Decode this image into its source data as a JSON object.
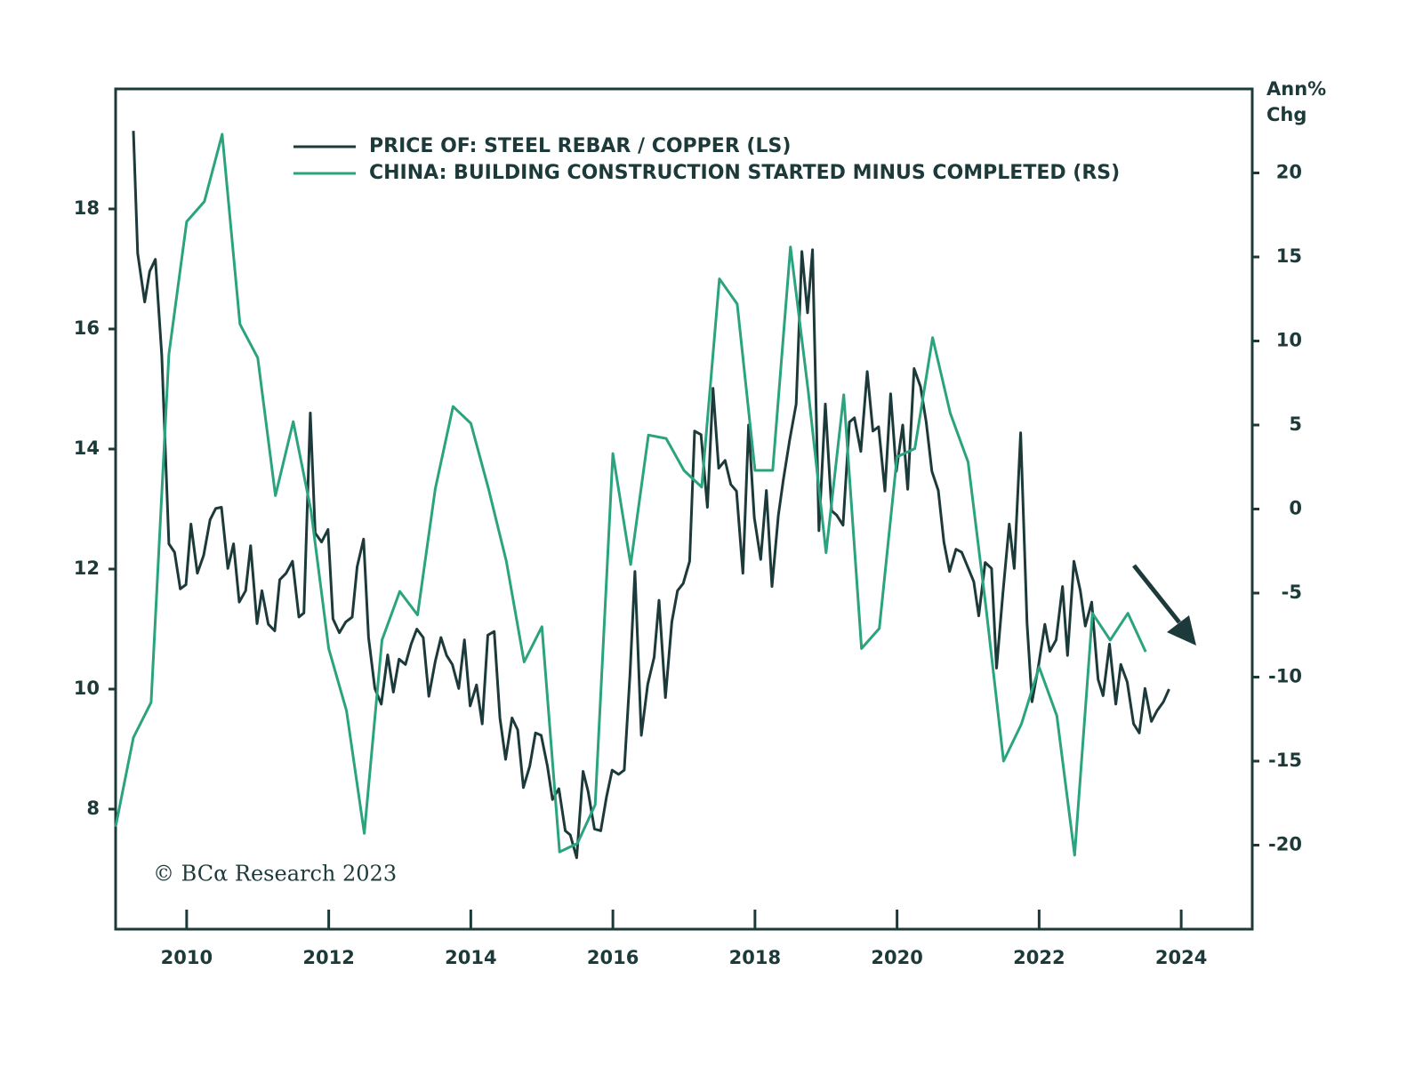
{
  "chart_data": {
    "type": "line",
    "y2_label": [
      "Ann%",
      "Chg"
    ],
    "annotation": "© BCα Research 2023",
    "xlim": [
      2009,
      2025
    ],
    "xticks": [
      2010,
      2012,
      2014,
      2016,
      2018,
      2020,
      2022,
      2024
    ],
    "ylim": [
      6,
      20
    ],
    "yticks": [
      8,
      10,
      12,
      14,
      16,
      18
    ],
    "y2lim": [
      -25,
      25
    ],
    "y2ticks": [
      -20,
      -15,
      -10,
      -5,
      0,
      5,
      10,
      15,
      20
    ],
    "legend": "upper left",
    "series": [
      {
        "name": "PRICE OF: STEEL REBAR / COPPER (LS)",
        "color": "#1d3a3a",
        "axis": "y",
        "x": [
          2009.25,
          2009.31,
          2009.41,
          2009.48,
          2009.56,
          2009.65,
          2009.75,
          2009.83,
          2009.91,
          2009.99,
          2010.06,
          2010.15,
          2010.24,
          2010.33,
          2010.41,
          2010.49,
          2010.58,
          2010.66,
          2010.74,
          2010.83,
          2010.9,
          2010.99,
          2011.06,
          2011.15,
          2011.24,
          2011.31,
          2011.4,
          2011.49,
          2011.58,
          2011.65,
          2011.74,
          2011.81,
          2011.9,
          2011.99,
          2012.06,
          2012.15,
          2012.24,
          2012.33,
          2012.4,
          2012.49,
          2012.56,
          2012.65,
          2012.74,
          2012.83,
          2012.91,
          2012.99,
          2013.08,
          2013.16,
          2013.24,
          2013.33,
          2013.41,
          2013.5,
          2013.58,
          2013.66,
          2013.74,
          2013.83,
          2013.91,
          2013.99,
          2014.08,
          2014.16,
          2014.24,
          2014.33,
          2014.41,
          2014.49,
          2014.58,
          2014.66,
          2014.74,
          2014.83,
          2014.91,
          2014.99,
          2015.08,
          2015.15,
          2015.24,
          2015.33,
          2015.4,
          2015.49,
          2015.58,
          2015.65,
          2015.74,
          2015.83,
          2015.91,
          2015.99,
          2016.08,
          2016.16,
          2016.24,
          2016.31,
          2016.4,
          2016.49,
          2016.58,
          2016.65,
          2016.74,
          2016.83,
          2016.91,
          2016.99,
          2017.08,
          2017.15,
          2017.24,
          2017.33,
          2017.41,
          2017.49,
          2017.58,
          2017.66,
          2017.74,
          2017.83,
          2017.91,
          2017.99,
          2018.08,
          2018.16,
          2018.24,
          2018.33,
          2018.4,
          2018.49,
          2018.58,
          2018.66,
          2018.74,
          2018.81,
          2018.9,
          2018.99,
          2019.08,
          2019.15,
          2019.24,
          2019.33,
          2019.4,
          2019.49,
          2019.58,
          2019.66,
          2019.74,
          2019.83,
          2019.91,
          2019.99,
          2020.08,
          2020.15,
          2020.24,
          2020.33,
          2020.41,
          2020.49,
          2020.58,
          2020.66,
          2020.74,
          2020.83,
          2020.91,
          2020.99,
          2021.08,
          2021.15,
          2021.24,
          2021.33,
          2021.4,
          2021.49,
          2021.58,
          2021.65,
          2021.74,
          2021.83,
          2021.9,
          2021.99,
          2022.08,
          2022.15,
          2022.24,
          2022.33,
          2022.4,
          2022.49,
          2022.58,
          2022.65,
          2022.74,
          2022.83,
          2022.9,
          2022.99,
          2023.08,
          2023.15,
          2023.24,
          2023.33,
          2023.41,
          2023.49,
          2023.58,
          2023.66,
          2023.75,
          2023.83
        ],
        "values": [
          19.3,
          17.26,
          16.45,
          16.96,
          17.16,
          15.56,
          12.42,
          12.28,
          11.67,
          11.74,
          12.75,
          11.93,
          12.23,
          12.82,
          13.01,
          13.03,
          12.01,
          12.42,
          11.45,
          11.64,
          12.39,
          11.09,
          11.64,
          11.08,
          10.97,
          11.82,
          11.93,
          12.13,
          11.2,
          11.27,
          14.6,
          12.6,
          12.45,
          12.66,
          11.17,
          10.94,
          11.12,
          11.2,
          12.04,
          12.5,
          10.86,
          10.01,
          9.75,
          10.57,
          9.95,
          10.5,
          10.41,
          10.75,
          11.0,
          10.86,
          9.88,
          10.46,
          10.86,
          10.56,
          10.41,
          10.01,
          10.82,
          9.72,
          10.07,
          9.42,
          10.9,
          10.96,
          9.52,
          8.83,
          9.52,
          9.32,
          8.36,
          8.72,
          9.27,
          9.23,
          8.71,
          8.16,
          8.34,
          7.64,
          7.57,
          7.19,
          8.63,
          8.3,
          7.67,
          7.64,
          8.2,
          8.65,
          8.58,
          8.65,
          10.23,
          11.96,
          9.23,
          10.08,
          10.53,
          11.48,
          9.86,
          11.12,
          11.64,
          11.76,
          12.13,
          14.3,
          14.24,
          13.03,
          15.01,
          13.68,
          13.81,
          13.41,
          13.3,
          11.93,
          14.4,
          12.86,
          12.16,
          13.31,
          11.71,
          12.9,
          13.49,
          14.16,
          14.75,
          17.29,
          16.27,
          17.32,
          12.64,
          14.75,
          12.97,
          12.9,
          12.73,
          14.45,
          14.52,
          13.96,
          15.29,
          14.3,
          14.37,
          13.3,
          14.92,
          13.63,
          14.4,
          13.33,
          15.34,
          15.04,
          14.45,
          13.63,
          13.31,
          12.45,
          11.96,
          12.33,
          12.28,
          12.05,
          11.79,
          11.22,
          12.11,
          12.01,
          10.35,
          11.59,
          12.75,
          12.01,
          14.27,
          11.09,
          9.79,
          10.38,
          11.08,
          10.63,
          10.82,
          11.71,
          10.56,
          12.13,
          11.64,
          11.05,
          11.45,
          10.16,
          9.89,
          10.75,
          9.75,
          10.41,
          10.12,
          9.42,
          9.27,
          10.01,
          9.46,
          9.64,
          9.79,
          10.0
        ]
      },
      {
        "name": "CHINA: BUILDING CONSTRUCTION STARTED MINUS COMPLETED (RS)",
        "color": "#2aa37e",
        "axis": "y2",
        "x": [
          2009.0,
          2009.25,
          2009.5,
          2009.75,
          2010.0,
          2010.25,
          2010.5,
          2010.75,
          2011.0,
          2011.25,
          2011.5,
          2011.75,
          2012.0,
          2012.25,
          2012.5,
          2012.75,
          2013.0,
          2013.25,
          2013.5,
          2013.75,
          2014.0,
          2014.25,
          2014.5,
          2014.75,
          2015.0,
          2015.25,
          2015.5,
          2015.75,
          2016.0,
          2016.25,
          2016.5,
          2016.75,
          2017.0,
          2017.25,
          2017.5,
          2017.75,
          2018.0,
          2018.25,
          2018.5,
          2018.75,
          2019.0,
          2019.25,
          2019.5,
          2019.75,
          2020.0,
          2020.25,
          2020.5,
          2020.75,
          2021.0,
          2021.25,
          2021.5,
          2021.75,
          2022.0,
          2022.25,
          2022.5,
          2022.75,
          2023.0,
          2023.25,
          2023.5
        ],
        "values": [
          -18.9,
          -13.6,
          -11.5,
          9.2,
          17.1,
          18.3,
          22.3,
          11.0,
          9.0,
          0.8,
          5.2,
          -0.1,
          -8.3,
          -12.0,
          -19.3,
          -7.8,
          -4.9,
          -6.3,
          1.2,
          6.1,
          5.1,
          1.2,
          -3.1,
          -9.1,
          -7.0,
          -20.4,
          -19.9,
          -17.6,
          3.3,
          -3.3,
          4.4,
          4.2,
          2.3,
          1.3,
          13.7,
          12.2,
          2.3,
          2.3,
          15.6,
          7.0,
          -2.6,
          6.8,
          -8.3,
          -7.1,
          3.1,
          3.6,
          10.2,
          5.7,
          2.8,
          -5.8,
          -15.0,
          -12.8,
          -9.4,
          -12.3,
          -20.6,
          -6.2,
          -7.8,
          -6.2,
          -8.5
        ]
      }
    ]
  }
}
